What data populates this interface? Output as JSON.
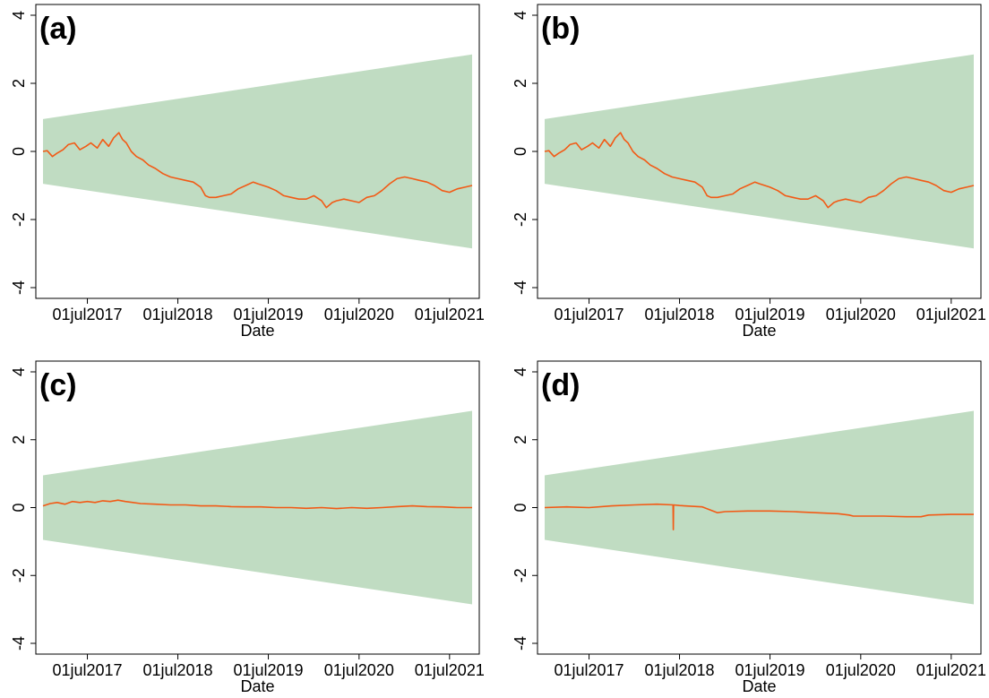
{
  "colors": {
    "band": "#c0dcc2",
    "line": "#f25a15",
    "frame": "#000000",
    "background": "#ffffff"
  },
  "chart_data": [
    {
      "type": "line",
      "panel_label": "(a)",
      "xlabel": "Date",
      "ylabel": "",
      "x_tick_labels": [
        "01jul2017",
        "01jul2018",
        "01jul2019",
        "01jul2020",
        "01jul2021"
      ],
      "x_tick_dates": [
        "2017-07-01",
        "2018-07-01",
        "2019-07-01",
        "2020-07-01",
        "2021-07-01"
      ],
      "xlim": [
        "2017-01-03",
        "2021-09-30"
      ],
      "ylim": [
        -4,
        4
      ],
      "y_ticks": [
        -4,
        -2,
        0,
        2,
        4
      ],
      "band": {
        "x": [
          "2017-01-03",
          "2021-09-30"
        ],
        "upper": [
          0.95,
          2.85
        ],
        "lower": [
          -0.95,
          -2.85
        ]
      },
      "series": [
        {
          "x": [
            "2017-01-03",
            "2017-01-20",
            "2017-02-10",
            "2017-03-01",
            "2017-03-25",
            "2017-04-15",
            "2017-05-10",
            "2017-06-01",
            "2017-06-25",
            "2017-07-15",
            "2017-08-10",
            "2017-09-01",
            "2017-09-25",
            "2017-10-15",
            "2017-11-05",
            "2017-11-20",
            "2017-12-05",
            "2017-12-25",
            "2018-01-15",
            "2018-02-10",
            "2018-03-05",
            "2018-04-01",
            "2018-05-01",
            "2018-06-01",
            "2018-07-01",
            "2018-08-01",
            "2018-09-01",
            "2018-10-01",
            "2018-10-20",
            "2018-11-05",
            "2018-12-01",
            "2019-01-01",
            "2019-02-01",
            "2019-03-01",
            "2019-04-01",
            "2019-05-01",
            "2019-05-20",
            "2019-06-10",
            "2019-07-01",
            "2019-08-01",
            "2019-09-01",
            "2019-10-01",
            "2019-11-01",
            "2019-12-01",
            "2020-01-01",
            "2020-02-01",
            "2020-02-20",
            "2020-03-15",
            "2020-04-01",
            "2020-05-01",
            "2020-06-01",
            "2020-07-01",
            "2020-08-01",
            "2020-09-01",
            "2020-10-01",
            "2020-11-01",
            "2020-12-01",
            "2021-01-01",
            "2021-02-01",
            "2021-03-01",
            "2021-04-01",
            "2021-05-01",
            "2021-06-01",
            "2021-07-01",
            "2021-08-01",
            "2021-09-01",
            "2021-09-30"
          ],
          "values": [
            0.0,
            0.02,
            -0.15,
            -0.05,
            0.05,
            0.2,
            0.25,
            0.05,
            0.15,
            0.25,
            0.1,
            0.35,
            0.15,
            0.4,
            0.55,
            0.35,
            0.25,
            0.0,
            -0.15,
            -0.25,
            -0.4,
            -0.5,
            -0.65,
            -0.75,
            -0.8,
            -0.85,
            -0.9,
            -1.05,
            -1.3,
            -1.35,
            -1.35,
            -1.3,
            -1.25,
            -1.1,
            -1.0,
            -0.9,
            -0.95,
            -1.0,
            -1.05,
            -1.15,
            -1.3,
            -1.35,
            -1.4,
            -1.4,
            -1.3,
            -1.45,
            -1.65,
            -1.5,
            -1.45,
            -1.4,
            -1.45,
            -1.5,
            -1.35,
            -1.3,
            -1.15,
            -0.95,
            -0.8,
            -0.75,
            -0.8,
            -0.85,
            -0.9,
            -1.0,
            -1.15,
            -1.2,
            -1.1,
            -1.05,
            -1.0
          ]
        }
      ]
    },
    {
      "type": "line",
      "panel_label": "(b)",
      "xlabel": "Date",
      "ylabel": "",
      "x_tick_labels": [
        "01jul2017",
        "01jul2018",
        "01jul2019",
        "01jul2020",
        "01jul2021"
      ],
      "x_tick_dates": [
        "2017-07-01",
        "2018-07-01",
        "2019-07-01",
        "2020-07-01",
        "2021-07-01"
      ],
      "xlim": [
        "2017-01-03",
        "2021-09-30"
      ],
      "ylim": [
        -4,
        4
      ],
      "y_ticks": [
        -4,
        -2,
        0,
        2,
        4
      ],
      "band": {
        "x": [
          "2017-01-03",
          "2021-09-30"
        ],
        "upper": [
          0.95,
          2.85
        ],
        "lower": [
          -0.95,
          -2.85
        ]
      },
      "series": [
        {
          "x": [
            "2017-01-03",
            "2017-01-20",
            "2017-02-10",
            "2017-03-01",
            "2017-03-25",
            "2017-04-15",
            "2017-05-10",
            "2017-06-01",
            "2017-06-25",
            "2017-07-15",
            "2017-08-10",
            "2017-09-01",
            "2017-09-25",
            "2017-10-15",
            "2017-11-05",
            "2017-11-20",
            "2017-12-05",
            "2017-12-25",
            "2018-01-15",
            "2018-02-10",
            "2018-03-05",
            "2018-04-01",
            "2018-05-01",
            "2018-06-01",
            "2018-07-01",
            "2018-08-01",
            "2018-09-01",
            "2018-10-01",
            "2018-10-20",
            "2018-11-05",
            "2018-12-01",
            "2019-01-01",
            "2019-02-01",
            "2019-03-01",
            "2019-04-01",
            "2019-05-01",
            "2019-05-20",
            "2019-06-10",
            "2019-07-01",
            "2019-08-01",
            "2019-09-01",
            "2019-10-01",
            "2019-11-01",
            "2019-12-01",
            "2020-01-01",
            "2020-02-01",
            "2020-02-20",
            "2020-03-15",
            "2020-04-01",
            "2020-05-01",
            "2020-06-01",
            "2020-07-01",
            "2020-08-01",
            "2020-09-01",
            "2020-10-01",
            "2020-11-01",
            "2020-12-01",
            "2021-01-01",
            "2021-02-01",
            "2021-03-01",
            "2021-04-01",
            "2021-05-01",
            "2021-06-01",
            "2021-07-01",
            "2021-08-01",
            "2021-09-01",
            "2021-09-30"
          ],
          "values": [
            0.0,
            0.02,
            -0.15,
            -0.05,
            0.05,
            0.2,
            0.25,
            0.05,
            0.15,
            0.25,
            0.1,
            0.35,
            0.15,
            0.4,
            0.55,
            0.35,
            0.25,
            0.0,
            -0.15,
            -0.25,
            -0.4,
            -0.5,
            -0.65,
            -0.75,
            -0.8,
            -0.85,
            -0.9,
            -1.05,
            -1.3,
            -1.35,
            -1.35,
            -1.3,
            -1.25,
            -1.1,
            -1.0,
            -0.9,
            -0.95,
            -1.0,
            -1.05,
            -1.15,
            -1.3,
            -1.35,
            -1.4,
            -1.4,
            -1.3,
            -1.45,
            -1.65,
            -1.5,
            -1.45,
            -1.4,
            -1.45,
            -1.5,
            -1.35,
            -1.3,
            -1.15,
            -0.95,
            -0.8,
            -0.75,
            -0.8,
            -0.85,
            -0.9,
            -1.0,
            -1.15,
            -1.2,
            -1.1,
            -1.05,
            -1.0
          ]
        }
      ]
    },
    {
      "type": "line",
      "panel_label": "(c)",
      "xlabel": "Date",
      "ylabel": "",
      "x_tick_labels": [
        "01jul2017",
        "01jul2018",
        "01jul2019",
        "01jul2020",
        "01jul2021"
      ],
      "x_tick_dates": [
        "2017-07-01",
        "2018-07-01",
        "2019-07-01",
        "2020-07-01",
        "2021-07-01"
      ],
      "xlim": [
        "2017-01-03",
        "2021-09-30"
      ],
      "ylim": [
        -4,
        4
      ],
      "y_ticks": [
        -4,
        -2,
        0,
        2,
        4
      ],
      "band": {
        "x": [
          "2017-01-03",
          "2021-09-30"
        ],
        "upper": [
          0.95,
          2.85
        ],
        "lower": [
          -0.95,
          -2.85
        ]
      },
      "series": [
        {
          "x": [
            "2017-01-03",
            "2017-02-01",
            "2017-03-01",
            "2017-04-01",
            "2017-05-01",
            "2017-06-01",
            "2017-07-01",
            "2017-08-01",
            "2017-09-01",
            "2017-10-01",
            "2017-11-01",
            "2017-12-01",
            "2018-01-01",
            "2018-02-01",
            "2018-04-01",
            "2018-06-01",
            "2018-08-01",
            "2018-10-01",
            "2018-12-01",
            "2019-02-01",
            "2019-04-01",
            "2019-06-01",
            "2019-08-01",
            "2019-10-01",
            "2019-12-01",
            "2020-02-01",
            "2020-04-01",
            "2020-06-01",
            "2020-08-01",
            "2020-10-01",
            "2020-12-01",
            "2021-02-01",
            "2021-04-01",
            "2021-06-01",
            "2021-08-01",
            "2021-09-30"
          ],
          "values": [
            0.05,
            0.12,
            0.15,
            0.1,
            0.18,
            0.15,
            0.18,
            0.15,
            0.2,
            0.18,
            0.22,
            0.18,
            0.15,
            0.12,
            0.1,
            0.08,
            0.08,
            0.05,
            0.05,
            0.03,
            0.02,
            0.02,
            0.0,
            0.0,
            -0.02,
            0.0,
            -0.03,
            0.0,
            -0.02,
            0.0,
            0.03,
            0.05,
            0.03,
            0.02,
            0.0,
            0.0
          ]
        }
      ]
    },
    {
      "type": "line",
      "panel_label": "(d)",
      "xlabel": "Date",
      "ylabel": "",
      "x_tick_labels": [
        "01jul2017",
        "01jul2018",
        "01jul2019",
        "01jul2020",
        "01jul2021"
      ],
      "x_tick_dates": [
        "2017-07-01",
        "2018-07-01",
        "2019-07-01",
        "2020-07-01",
        "2021-07-01"
      ],
      "xlim": [
        "2017-01-03",
        "2021-09-30"
      ],
      "ylim": [
        -4,
        4
      ],
      "y_ticks": [
        -4,
        -2,
        0,
        2,
        4
      ],
      "band": {
        "x": [
          "2017-01-03",
          "2021-09-30"
        ],
        "upper": [
          0.95,
          2.85
        ],
        "lower": [
          -0.95,
          -2.85
        ]
      },
      "series": [
        {
          "x": [
            "2017-01-03",
            "2017-04-01",
            "2017-07-01",
            "2017-10-01",
            "2018-01-01",
            "2018-04-01",
            "2018-06-05",
            "2018-06-06",
            "2018-06-07",
            "2018-07-01",
            "2018-10-01",
            "2018-12-01",
            "2019-01-01",
            "2019-04-01",
            "2019-07-01",
            "2019-10-01",
            "2020-01-01",
            "2020-04-01",
            "2020-05-15",
            "2020-06-01",
            "2020-07-01",
            "2020-10-01",
            "2021-01-01",
            "2021-03-01",
            "2021-04-01",
            "2021-07-01",
            "2021-09-30"
          ],
          "values": [
            0.0,
            0.02,
            0.0,
            0.05,
            0.08,
            0.1,
            0.08,
            -0.65,
            0.08,
            0.06,
            0.02,
            -0.15,
            -0.12,
            -0.1,
            -0.1,
            -0.12,
            -0.15,
            -0.18,
            -0.22,
            -0.25,
            -0.25,
            -0.25,
            -0.27,
            -0.27,
            -0.22,
            -0.2,
            -0.2
          ]
        }
      ]
    }
  ]
}
